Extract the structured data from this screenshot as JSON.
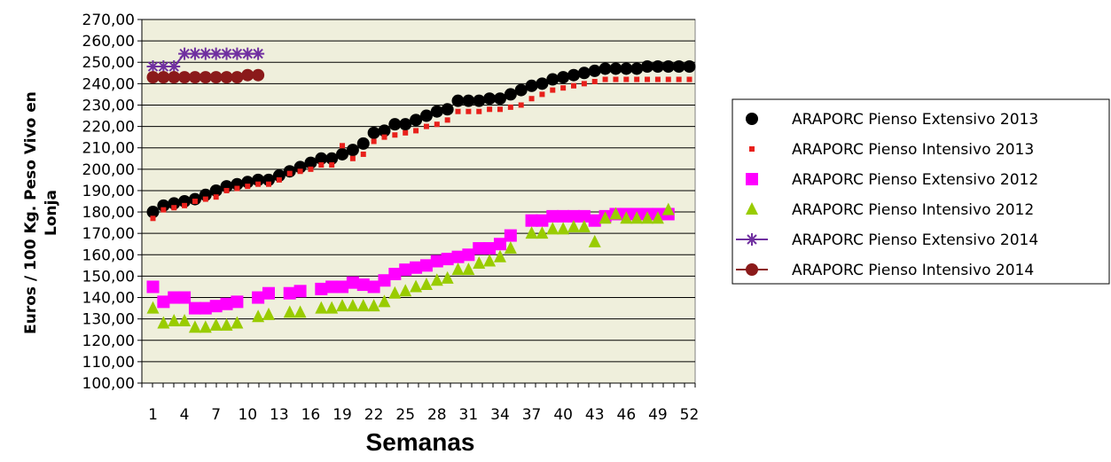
{
  "chart_data": {
    "type": "scatter",
    "title": "",
    "xlabel": "Semanas",
    "ylabel_line1": "Euros / 100 Kg. Peso Vivo en",
    "ylabel_line2": "Lonja",
    "xlim": [
      1,
      52
    ],
    "ylim": [
      100,
      270
    ],
    "y_ticks": [
      "100,00",
      "110,00",
      "120,00",
      "130,00",
      "140,00",
      "150,00",
      "160,00",
      "170,00",
      "180,00",
      "190,00",
      "200,00",
      "210,00",
      "220,00",
      "230,00",
      "240,00",
      "250,00",
      "260,00",
      "270,00"
    ],
    "x_ticks": [
      "1",
      "4",
      "7",
      "10",
      "13",
      "16",
      "19",
      "22",
      "25",
      "28",
      "31",
      "34",
      "37",
      "40",
      "43",
      "46",
      "49",
      "52"
    ],
    "grid": "horizontal",
    "plot_background": "#efefdc",
    "legend_position": "right",
    "series": [
      {
        "name": "ARAPORC Pienso Extensivo 2013",
        "marker": "circle",
        "color": "#000000",
        "x": [
          1,
          2,
          3,
          4,
          5,
          6,
          7,
          8,
          9,
          10,
          11,
          12,
          13,
          14,
          15,
          16,
          17,
          18,
          19,
          20,
          21,
          22,
          23,
          24,
          25,
          26,
          27,
          28,
          29,
          30,
          31,
          32,
          33,
          34,
          35,
          36,
          37,
          38,
          39,
          40,
          41,
          42,
          43,
          44,
          45,
          46,
          47,
          48,
          49,
          50,
          51,
          52
        ],
        "y": [
          180,
          183,
          184,
          185,
          186,
          188,
          190,
          192,
          193,
          194,
          195,
          195,
          197,
          199,
          201,
          203,
          205,
          205,
          207,
          209,
          212,
          217,
          218,
          221,
          221,
          223,
          225,
          227,
          228,
          232,
          232,
          232,
          233,
          233,
          235,
          237,
          239,
          240,
          242,
          243,
          244,
          245,
          246,
          247,
          247,
          247,
          247,
          248,
          248,
          248,
          248,
          248
        ]
      },
      {
        "name": "ARAPORC Pienso Intensivo 2013",
        "marker": "square-small",
        "color": "#e8201b",
        "x": [
          1,
          2,
          3,
          4,
          5,
          6,
          7,
          8,
          9,
          10,
          11,
          12,
          13,
          14,
          15,
          16,
          17,
          18,
          19,
          20,
          21,
          22,
          23,
          24,
          25,
          26,
          27,
          28,
          29,
          30,
          31,
          32,
          33,
          34,
          35,
          36,
          37,
          38,
          39,
          40,
          41,
          42,
          43,
          44,
          45,
          46,
          47,
          48,
          49,
          50,
          51,
          52
        ],
        "y": [
          177,
          181,
          182,
          183,
          185,
          186,
          187,
          190,
          191,
          192,
          193,
          193,
          195,
          198,
          199,
          200,
          202,
          202,
          211,
          205,
          207,
          213,
          215,
          216,
          217,
          218,
          220,
          221,
          223,
          227,
          227,
          227,
          228,
          228,
          229,
          230,
          233,
          235,
          237,
          238,
          239,
          240,
          241,
          242,
          242,
          242,
          242,
          242,
          242,
          242,
          242,
          242
        ]
      },
      {
        "name": "ARAPORC Pienso Extensivo 2012",
        "marker": "square",
        "color": "#ff00ff",
        "x": [
          1,
          2,
          3,
          4,
          5,
          6,
          7,
          8,
          9,
          11,
          12,
          14,
          15,
          17,
          18,
          19,
          20,
          21,
          22,
          23,
          24,
          25,
          26,
          27,
          28,
          29,
          30,
          31,
          32,
          33,
          34,
          35,
          37,
          38,
          39,
          40,
          41,
          42,
          43,
          44,
          45,
          46,
          47,
          48,
          49,
          50
        ],
        "y": [
          145,
          138,
          140,
          140,
          135,
          135,
          136,
          137,
          138,
          140,
          142,
          142,
          143,
          144,
          145,
          145,
          147,
          146,
          145,
          148,
          151,
          153,
          154,
          155,
          157,
          158,
          159,
          160,
          163,
          163,
          165,
          169,
          176,
          176,
          178,
          178,
          178,
          178,
          176,
          178,
          179,
          179,
          179,
          179,
          179,
          179
        ]
      },
      {
        "name": "ARAPORC Pienso Intensivo 2012",
        "marker": "triangle",
        "color": "#99cc00",
        "x": [
          1,
          2,
          3,
          4,
          5,
          6,
          7,
          8,
          9,
          11,
          12,
          14,
          15,
          17,
          18,
          19,
          20,
          21,
          22,
          23,
          24,
          25,
          26,
          27,
          28,
          29,
          30,
          31,
          32,
          33,
          34,
          35,
          37,
          38,
          39,
          40,
          41,
          42,
          43,
          44,
          45,
          46,
          47,
          48,
          49,
          50
        ],
        "y": [
          135,
          128,
          129,
          129,
          126,
          126,
          127,
          127,
          128,
          131,
          132,
          133,
          133,
          135,
          135,
          136,
          136,
          136,
          136,
          138,
          142,
          143,
          145,
          146,
          148,
          149,
          153,
          153,
          156,
          157,
          159,
          163,
          170,
          170,
          172,
          172,
          173,
          173,
          166,
          177,
          179,
          177,
          177,
          177,
          177,
          181
        ]
      },
      {
        "name": "ARAPORC Pienso Extensivo 2014",
        "marker": "star",
        "line": true,
        "color": "#7030a0",
        "x": [
          1,
          2,
          3,
          4,
          5,
          6,
          7,
          8,
          9,
          10,
          11
        ],
        "y": [
          248,
          248,
          248,
          254,
          254,
          254,
          254,
          254,
          254,
          254,
          254
        ]
      },
      {
        "name": "ARAPORC Pienso Intensivo 2014",
        "marker": "circle",
        "line": true,
        "color": "#8b1a1a",
        "x": [
          1,
          2,
          3,
          4,
          5,
          6,
          7,
          8,
          9,
          10,
          11
        ],
        "y": [
          243,
          243,
          243,
          243,
          243,
          243,
          243,
          243,
          243,
          244,
          244
        ]
      }
    ]
  }
}
